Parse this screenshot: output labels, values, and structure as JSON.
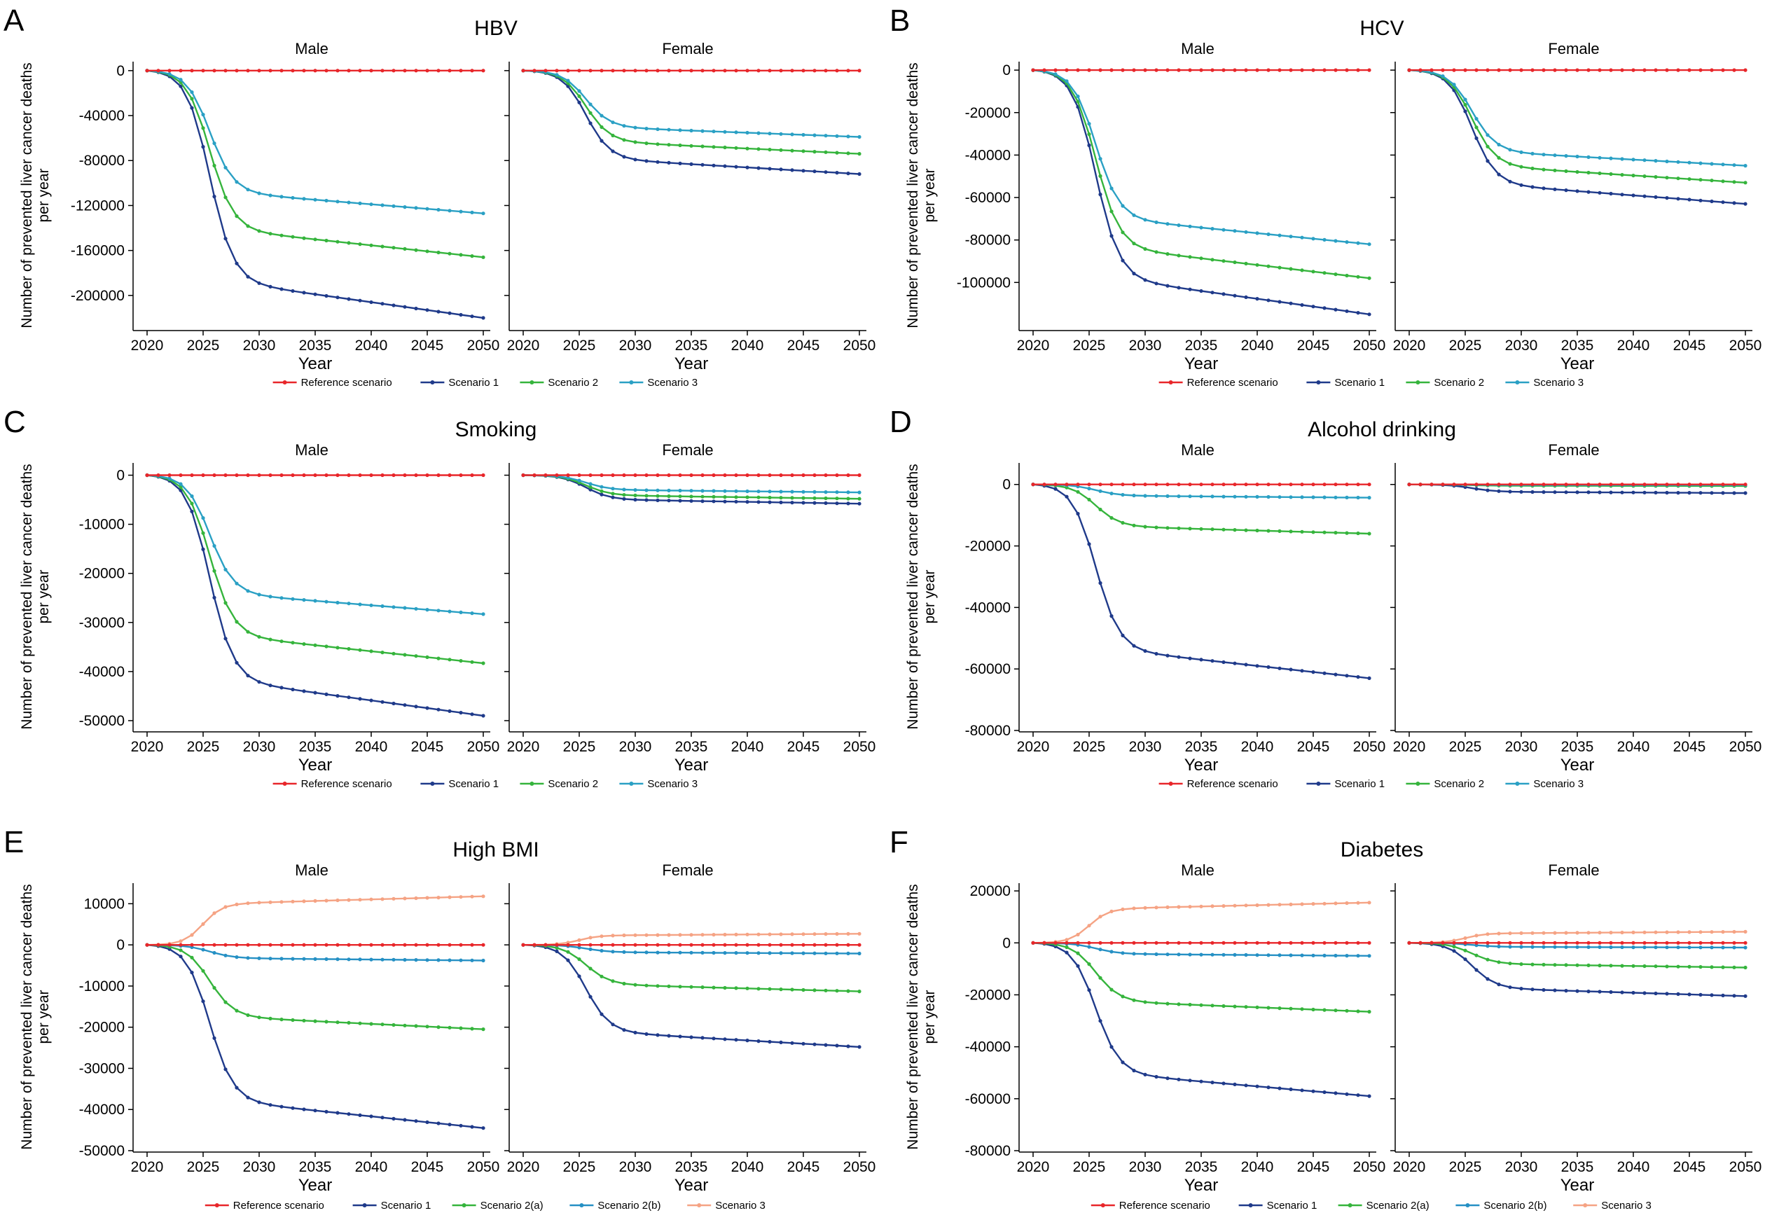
{
  "colors": {
    "reference": "#e8262a",
    "s1": "#1f3a8a",
    "s2": "#35b43c",
    "s2b": "#2590c4",
    "s3": "#2aa0c4",
    "s3peach": "#f5a384"
  },
  "axis": {
    "ylabel": "Number of prevented liver cancer deaths per year",
    "xlabel": "Year"
  },
  "chart_data": [
    {
      "type": "line",
      "panel_letter": "A",
      "title": "HBV",
      "facets": [
        "Male",
        "Female"
      ],
      "x": [
        2020,
        2050
      ],
      "xticks": [
        2020,
        2025,
        2030,
        2035,
        2040,
        2045,
        2050
      ],
      "ylim": [
        -230000,
        8000
      ],
      "yticks": [
        0,
        -40000,
        -80000,
        -120000,
        -160000,
        -200000
      ],
      "legend": [
        "Reference scenario",
        "Scenario 1",
        "Scenario 2",
        "Scenario 3"
      ],
      "series_keys": [
        "reference",
        "s1",
        "s2",
        "s3"
      ],
      "finals": [
        {
          "reference": 0,
          "s1": -220000,
          "s2": -166000,
          "s3": -127000
        },
        {
          "reference": 0,
          "s1": -92000,
          "s2": -74000,
          "s3": -59000
        }
      ]
    },
    {
      "type": "line",
      "panel_letter": "B",
      "title": "HCV",
      "facets": [
        "Male",
        "Female"
      ],
      "x": [
        2020,
        2050
      ],
      "xticks": [
        2020,
        2025,
        2030,
        2035,
        2040,
        2045,
        2050
      ],
      "ylim": [
        -122000,
        4000
      ],
      "yticks": [
        0,
        -20000,
        -40000,
        -60000,
        -80000,
        -100000
      ],
      "legend": [
        "Reference scenario",
        "Scenario 1",
        "Scenario 2",
        "Scenario 3"
      ],
      "series_keys": [
        "reference",
        "s1",
        "s2",
        "s3"
      ],
      "finals": [
        {
          "reference": 0,
          "s1": -115000,
          "s2": -98000,
          "s3": -82000
        },
        {
          "reference": 0,
          "s1": -63000,
          "s2": -53000,
          "s3": -45000
        }
      ]
    },
    {
      "type": "line",
      "panel_letter": "C",
      "title": "Smoking",
      "facets": [
        "Male",
        "Female"
      ],
      "x": [
        2020,
        2050
      ],
      "xticks": [
        2020,
        2025,
        2030,
        2035,
        2040,
        2045,
        2050
      ],
      "ylim": [
        -52000,
        2500
      ],
      "yticks": [
        0,
        -10000,
        -20000,
        -30000,
        -40000,
        -50000
      ],
      "legend": [
        "Reference scenario",
        "Scenario 1",
        "Scenario 2",
        "Scenario 3"
      ],
      "series_keys": [
        "reference",
        "s1",
        "s2",
        "s3"
      ],
      "finals": [
        {
          "reference": 0,
          "s1": -49000,
          "s2": -38300,
          "s3": -28300
        },
        {
          "reference": 0,
          "s1": -5800,
          "s2": -4800,
          "s3": -3500
        }
      ]
    },
    {
      "type": "line",
      "panel_letter": "D",
      "title": "Alcohol drinking",
      "facets": [
        "Male",
        "Female"
      ],
      "x": [
        2020,
        2050
      ],
      "xticks": [
        2020,
        2025,
        2030,
        2035,
        2040,
        2045,
        2050
      ],
      "ylim": [
        -80000,
        7000
      ],
      "yticks": [
        0,
        -20000,
        -40000,
        -60000,
        -80000
      ],
      "legend": [
        "Reference scenario",
        "Scenario 1",
        "Scenario 2",
        "Scenario 3"
      ],
      "series_keys": [
        "reference",
        "s1",
        "s2",
        "s3"
      ],
      "finals": [
        {
          "reference": 0,
          "s1": -63000,
          "s2": -16000,
          "s3": -4300
        },
        {
          "reference": 0,
          "s1": -2800,
          "s2": -500,
          "s3": -200
        }
      ]
    },
    {
      "type": "line",
      "panel_letter": "E",
      "title": "High BMI",
      "facets": [
        "Male",
        "Female"
      ],
      "x": [
        2020,
        2050
      ],
      "xticks": [
        2020,
        2025,
        2030,
        2035,
        2040,
        2045,
        2050
      ],
      "ylim": [
        -50000,
        15000
      ],
      "yticks": [
        10000,
        0,
        -10000,
        -20000,
        -30000,
        -40000,
        -50000
      ],
      "legend": [
        "Reference scenario",
        "Scenario 1",
        "Scenario 2(a)",
        "Scenario 2(b)",
        "Scenario 3"
      ],
      "series_keys": [
        "reference",
        "s1",
        "s2",
        "s2b",
        "s3peach"
      ],
      "finals": [
        {
          "reference": 0,
          "s1": -44500,
          "s2": -20500,
          "s2b": -3800,
          "s3peach": 11800
        },
        {
          "reference": 0,
          "s1": -24800,
          "s2": -11300,
          "s2b": -2100,
          "s3peach": 2700
        }
      ]
    },
    {
      "type": "line",
      "panel_letter": "F",
      "title": "Diabetes",
      "facets": [
        "Male",
        "Female"
      ],
      "x": [
        2020,
        2050
      ],
      "xticks": [
        2020,
        2025,
        2030,
        2035,
        2040,
        2045,
        2050
      ],
      "ylim": [
        -80000,
        23000
      ],
      "yticks": [
        20000,
        0,
        -20000,
        -40000,
        -60000,
        -80000
      ],
      "legend": [
        "Reference scenario",
        "Scenario 1",
        "Scenario 2(a)",
        "Scenario 2(b)",
        "Scenario 3"
      ],
      "series_keys": [
        "reference",
        "s1",
        "s2",
        "s2b",
        "s3peach"
      ],
      "finals": [
        {
          "reference": 0,
          "s1": -59000,
          "s2": -26500,
          "s2b": -5000,
          "s3peach": 15500
        },
        {
          "reference": 0,
          "s1": -20500,
          "s2": -9500,
          "s2b": -1800,
          "s3peach": 4300
        }
      ]
    }
  ]
}
